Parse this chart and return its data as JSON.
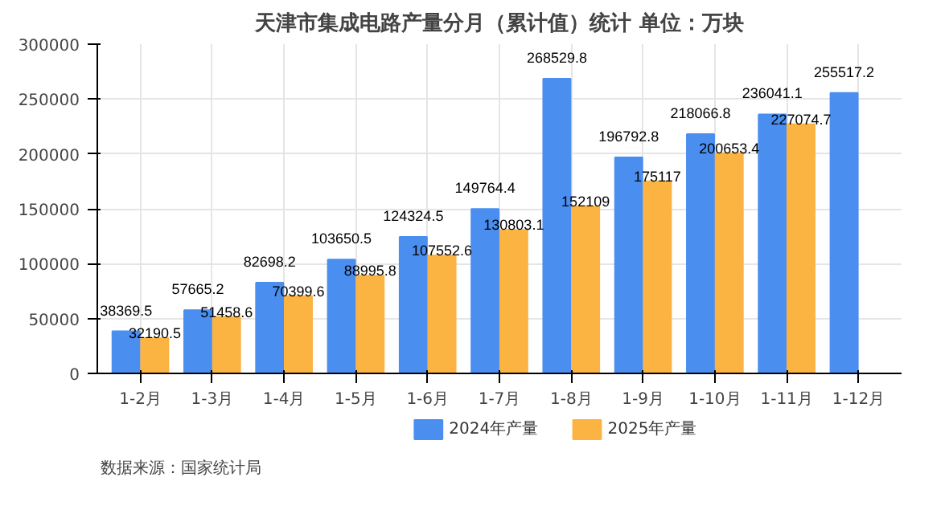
{
  "chart_data": {
    "type": "bar",
    "title": "天津市集成电路产量分月（累计值）统计 单位：万块",
    "categories": [
      "1-2月",
      "1-3月",
      "1-4月",
      "1-5月",
      "1-6月",
      "1-7月",
      "1-8月",
      "1-9月",
      "1-10月",
      "1-11月",
      "1-12月"
    ],
    "series": [
      {
        "name": "2024年产量",
        "color": "#4a8ef0",
        "values": [
          38369.5,
          57665.2,
          82698.2,
          103650.5,
          124324.5,
          149764.4,
          268529.8,
          196792.8,
          218066.8,
          236041.1,
          255517.2
        ]
      },
      {
        "name": "2025年产量",
        "color": "#fbb342",
        "values": [
          32190.5,
          51458.6,
          70399.6,
          88995.8,
          107552.6,
          130803.1,
          152109,
          175117,
          200653.4,
          227074.7,
          null
        ]
      }
    ],
    "ylim": [
      0,
      300000
    ],
    "yticks": [
      0,
      50000,
      100000,
      150000,
      200000,
      250000,
      300000
    ],
    "grid": true,
    "legend": "bottom",
    "data_labels": true,
    "annotations": [
      "数据来源：国家统计局"
    ]
  }
}
